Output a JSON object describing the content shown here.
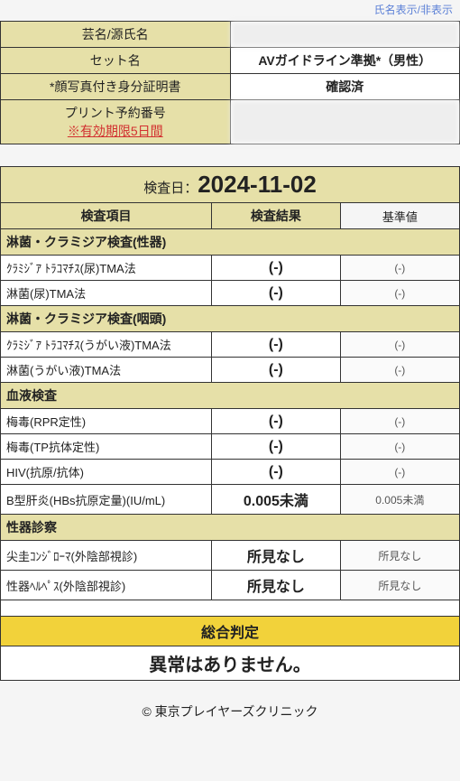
{
  "top_link": "氏名表示/非表示",
  "info": {
    "row1_label": "芸名/源氏名",
    "row1_value": "",
    "row2_label": "セット名",
    "row2_value": "AVガイドライン準拠*（男性）",
    "row3_label": "*顔写真付き身分証明書",
    "row3_value": "確認済",
    "row4_label1": "プリント予約番号",
    "row4_label2": "※有効期限5日間",
    "row4_value": ""
  },
  "exam": {
    "date_label": "検査日：",
    "date_value": "2024-11-02",
    "col_item": "検査項目",
    "col_result": "検査結果",
    "col_ref": "基準値"
  },
  "sections": [
    {
      "title": "淋菌・クラミジア検査(性器)",
      "rows": [
        {
          "name": "ｸﾗﾐｼﾞｱ ﾄﾗｺﾏﾁｽ(尿)TMA法",
          "result": "(-)",
          "ref": "(-)"
        },
        {
          "name": "淋菌(尿)TMA法",
          "result": "(-)",
          "ref": "(-)"
        }
      ]
    },
    {
      "title": "淋菌・クラミジア検査(咽頭)",
      "rows": [
        {
          "name": "ｸﾗﾐｼﾞｱ ﾄﾗｺﾏﾁｽ(うがい液)TMA法",
          "result": "(-)",
          "ref": "(-)"
        },
        {
          "name": "淋菌(うがい液)TMA法",
          "result": "(-)",
          "ref": "(-)"
        }
      ]
    },
    {
      "title": "血液検査",
      "rows": [
        {
          "name": "梅毒(RPR定性)",
          "result": "(-)",
          "ref": "(-)"
        },
        {
          "name": "梅毒(TP抗体定性)",
          "result": "(-)",
          "ref": "(-)"
        },
        {
          "name": "HIV(抗原/抗体)",
          "result": "(-)",
          "ref": "(-)"
        },
        {
          "name": "B型肝炎(HBs抗原定量)(IU/mL)",
          "result": "0.005未満",
          "ref": "0.005未満"
        }
      ]
    },
    {
      "title": "性器診察",
      "rows": [
        {
          "name": "尖圭ｺﾝｼﾞﾛｰﾏ(外陰部視診)",
          "result": "所見なし",
          "ref": "所見なし"
        },
        {
          "name": "性器ﾍﾙﾍﾟｽ(外陰部視診)",
          "result": "所見なし",
          "ref": "所見なし"
        }
      ]
    }
  ],
  "overall": {
    "label": "総合判定",
    "result": "異常はありません。"
  },
  "footer": "© 東京プレイヤーズクリニック"
}
